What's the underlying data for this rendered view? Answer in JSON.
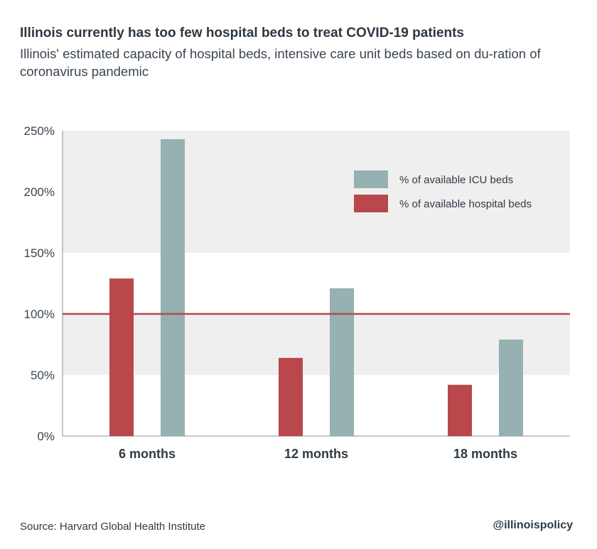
{
  "header": {
    "title": "Illinois currently has too few hospital beds to treat COVID-19 patients",
    "subtitle": "Illinois' estimated capacity of hospital beds, intensive care unit beds based on du-ration of coronavirus pandemic"
  },
  "footer": {
    "source": "Source: Harvard Global Health Institute",
    "handle": "@illinoispolicy"
  },
  "chart_data": {
    "type": "bar",
    "title": "Illinois currently has too few hospital beds to treat COVID-19 patients",
    "subtitle": "Illinois' estimated capacity of hospital beds, intensive care unit beds based on du-ration of coronavirus pandemic",
    "xlabel": "",
    "ylabel": "",
    "categories": [
      "6 months",
      "12 months",
      "18 months"
    ],
    "series": [
      {
        "name": "% of available hospital beds",
        "color": "#b9474c",
        "values": [
          129,
          64,
          42
        ]
      },
      {
        "name": "% of available ICU beds",
        "color": "#95b1b1",
        "values": [
          243,
          121,
          79
        ]
      }
    ],
    "ylim": [
      0,
      250
    ],
    "yticks": [
      0,
      50,
      100,
      150,
      200,
      250
    ],
    "ytick_labels": [
      "0%",
      "50%",
      "100%",
      "150%",
      "200%",
      "250%"
    ],
    "reference_line": {
      "value": 100,
      "color": "#b9474c"
    },
    "band_color": "#efefef",
    "legend": {
      "placement": "top-right",
      "entries": [
        {
          "label": "% of available ICU beds",
          "color": "#95b1b1"
        },
        {
          "label": "% of available hospital beds",
          "color": "#b9474c"
        }
      ]
    },
    "grid": false
  }
}
